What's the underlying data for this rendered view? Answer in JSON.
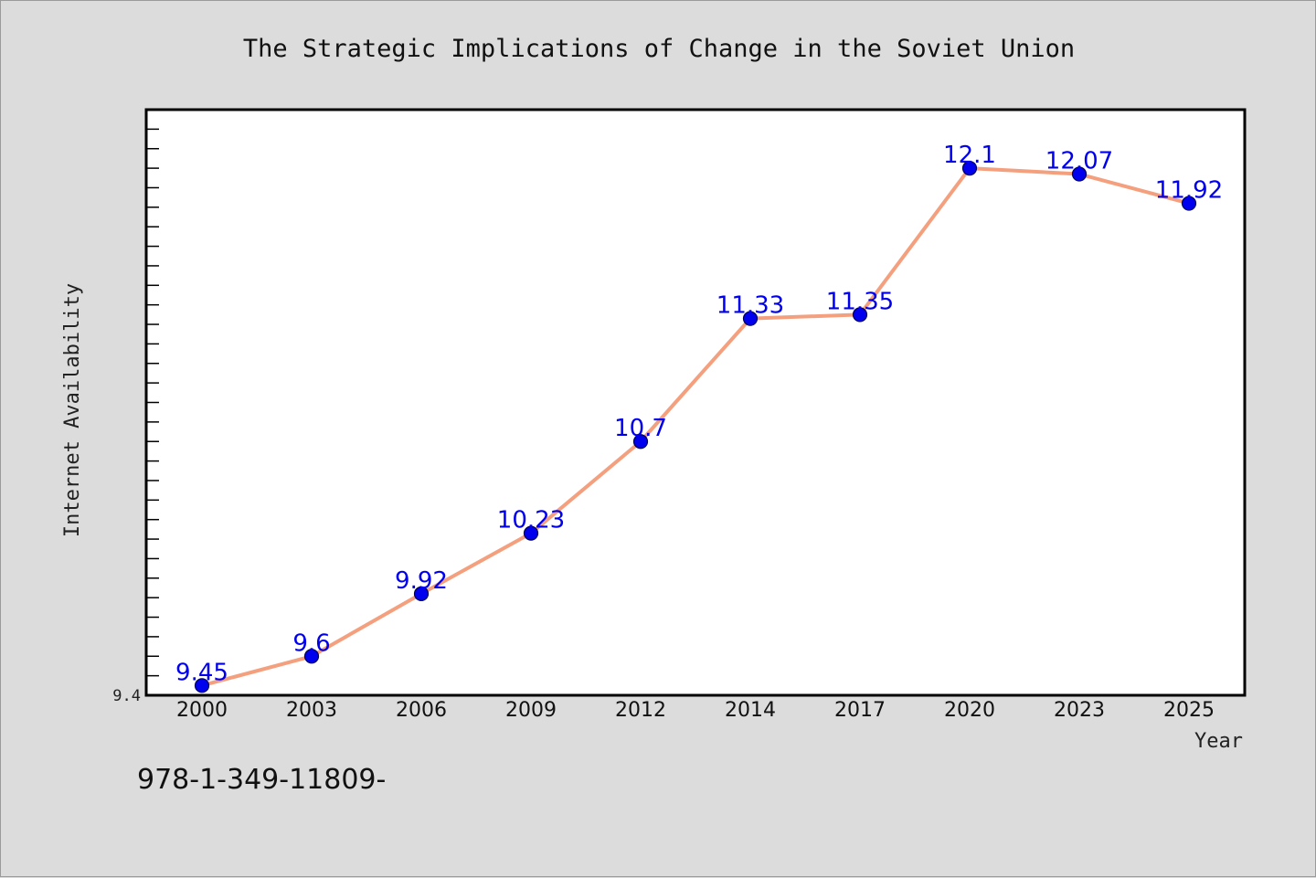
{
  "chart_data": {
    "type": "line",
    "title": "The Strategic Implications of Change in the Soviet Union",
    "xlabel": "Year",
    "ylabel": "Internet Availability",
    "categories": [
      "2000",
      "2003",
      "2006",
      "2009",
      "2012",
      "2014",
      "2017",
      "2020",
      "2023",
      "2025"
    ],
    "series": [
      {
        "values": [
          9.45,
          9.6,
          9.92,
          10.23,
          10.7,
          11.33,
          11.35,
          12.1,
          12.07,
          11.92
        ],
        "labels": [
          "9.45",
          "9.6",
          "9.92",
          "10.23",
          "10.7",
          "11.33",
          "11.35",
          "12.1",
          "12.07",
          "11.92"
        ]
      }
    ],
    "ylim": [
      9.4,
      12.4
    ],
    "yticks_labeled": [
      "9.4"
    ],
    "grid": false,
    "legend": "none",
    "colors": {
      "line": "#f4a07e",
      "marker": "#0000ee",
      "marker_edge": "#000055",
      "data_label": "#0000ee",
      "plot_background": "#ffffff",
      "figure_background": "#dcdcdc"
    }
  },
  "footnote": "978-1-349-11809-"
}
